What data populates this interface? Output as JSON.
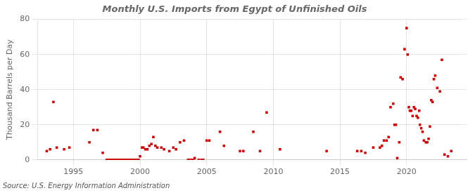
{
  "chart_data": {
    "type": "scatter",
    "title": "Monthly U.S. Imports from Egypt of Unfinished Oils",
    "y_label": "Thousand Barrels per Day",
    "annotations": [
      "Source: U.S. Energy Information Administration"
    ],
    "color": "#cc0000",
    "marker": "square",
    "grid": true,
    "xlim": [
      1992.3,
      2024.5
    ],
    "xticks": [
      1995,
      2000,
      2005,
      2010,
      2015,
      2020
    ],
    "ylim": [
      0,
      80
    ],
    "yticks": [
      0,
      20,
      40,
      60,
      80
    ],
    "x": [
      1993.0,
      1993.25,
      1993.5,
      1993.75,
      1994.3,
      1994.7,
      1996.2,
      1996.5,
      1996.8,
      1997.2,
      1997.5,
      1997.6,
      1997.7,
      1997.8,
      1997.9,
      1998.0,
      1998.1,
      1998.2,
      1998.3,
      1998.4,
      1998.5,
      1998.6,
      1998.7,
      1998.8,
      1998.9,
      1999.0,
      1999.1,
      1999.2,
      1999.3,
      1999.4,
      1999.5,
      1999.6,
      1999.7,
      1999.8,
      1999.9,
      2000.0,
      2000.15,
      2000.25,
      2000.4,
      2000.55,
      2000.7,
      2000.85,
      2001.0,
      2001.15,
      2001.3,
      2001.6,
      2001.8,
      2002.2,
      2002.5,
      2002.7,
      2003.0,
      2003.3,
      2003.6,
      2003.75,
      2003.9,
      2004.0,
      2004.1,
      2004.4,
      2004.6,
      2004.75,
      2005.0,
      2005.2,
      2006.0,
      2006.3,
      2007.5,
      2007.75,
      2008.5,
      2009.0,
      2009.5,
      2010.5,
      2014.0,
      2016.3,
      2016.6,
      2016.9,
      2017.5,
      2018.0,
      2018.15,
      2018.3,
      2018.5,
      2018.65,
      2018.8,
      2019.0,
      2019.1,
      2019.2,
      2019.3,
      2019.45,
      2019.55,
      2019.7,
      2019.85,
      2020.0,
      2020.08,
      2020.17,
      2020.25,
      2020.35,
      2020.45,
      2020.55,
      2020.65,
      2020.75,
      2020.85,
      2020.95,
      2021.0,
      2021.1,
      2021.2,
      2021.3,
      2021.45,
      2021.55,
      2021.65,
      2021.75,
      2021.85,
      2021.95,
      2022.05,
      2022.15,
      2022.3,
      2022.5,
      2022.65,
      2022.85,
      2023.1,
      2023.35
    ],
    "values": [
      5,
      6,
      33,
      7,
      6,
      7,
      10,
      17,
      17,
      4,
      0,
      0,
      0,
      0,
      0,
      0,
      0,
      0,
      0,
      0,
      0,
      0,
      0,
      0,
      0,
      0,
      0,
      0,
      0,
      0,
      0,
      0,
      0,
      0,
      0,
      2,
      7,
      7,
      6,
      6,
      8,
      9,
      13,
      8,
      7,
      7,
      6,
      5,
      7,
      6,
      10,
      11,
      0,
      0,
      0,
      0,
      1,
      0,
      0,
      0,
      11,
      11,
      16,
      8,
      5,
      5,
      16,
      5,
      27,
      6,
      5,
      5,
      5,
      4,
      7,
      7,
      8,
      11,
      11,
      13,
      30,
      32,
      20,
      20,
      1,
      10,
      47,
      46,
      63,
      75,
      60,
      30,
      28,
      28,
      25,
      30,
      29,
      25,
      24,
      28,
      20,
      18,
      16,
      11,
      10,
      10,
      12,
      19,
      34,
      33,
      46,
      48,
      41,
      39,
      57,
      3,
      2,
      5
    ]
  }
}
